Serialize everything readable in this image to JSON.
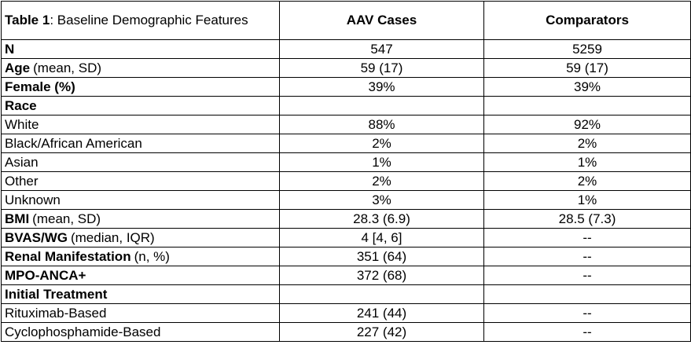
{
  "table": {
    "title_bold": "Table 1",
    "title_rest": ": Baseline Demographic Features",
    "columns": [
      "AAV Cases",
      "Comparators"
    ],
    "rows": [
      {
        "label": "N",
        "bold": true,
        "cases": "547",
        "comparators": "5259"
      },
      {
        "label": "Age",
        "note": "(mean, SD)",
        "bold": true,
        "cases": "59 (17)",
        "comparators": "59 (17)"
      },
      {
        "label": "Female (%)",
        "bold": true,
        "cases": "39%",
        "comparators": "39%"
      },
      {
        "label": "Race",
        "bold": true
      },
      {
        "label": "White",
        "bold": false,
        "cases": "88%",
        "comparators": "92%"
      },
      {
        "label": "Black/African American",
        "bold": false,
        "cases": "2%",
        "comparators": "2%"
      },
      {
        "label": "Asian",
        "bold": false,
        "cases": "1%",
        "comparators": "1%"
      },
      {
        "label": "Other",
        "bold": false,
        "cases": "2%",
        "comparators": "2%"
      },
      {
        "label": "Unknown",
        "bold": false,
        "cases": "3%",
        "comparators": "1%"
      },
      {
        "label": "BMI",
        "note": "(mean, SD)",
        "bold": true,
        "cases": "28.3 (6.9)",
        "comparators": "28.5 (7.3)"
      },
      {
        "label": "BVAS/WG",
        "note": "(median, IQR)",
        "bold": true,
        "cases": "4 [4, 6]",
        "comparators": "--"
      },
      {
        "label": "Renal Manifestation",
        "note": "(n, %)",
        "bold": true,
        "cases": "351 (64)",
        "comparators": "--"
      },
      {
        "label": "MPO-ANCA+",
        "bold": true,
        "cases": "372 (68)",
        "comparators": "--"
      },
      {
        "label": "Initial Treatment",
        "bold": true
      },
      {
        "label": "Rituximab-Based",
        "bold": false,
        "cases": "241 (44)",
        "comparators": "--"
      },
      {
        "label": "Cyclophosphamide-Based",
        "bold": false,
        "cases": "227 (42)",
        "comparators": "--"
      }
    ]
  }
}
